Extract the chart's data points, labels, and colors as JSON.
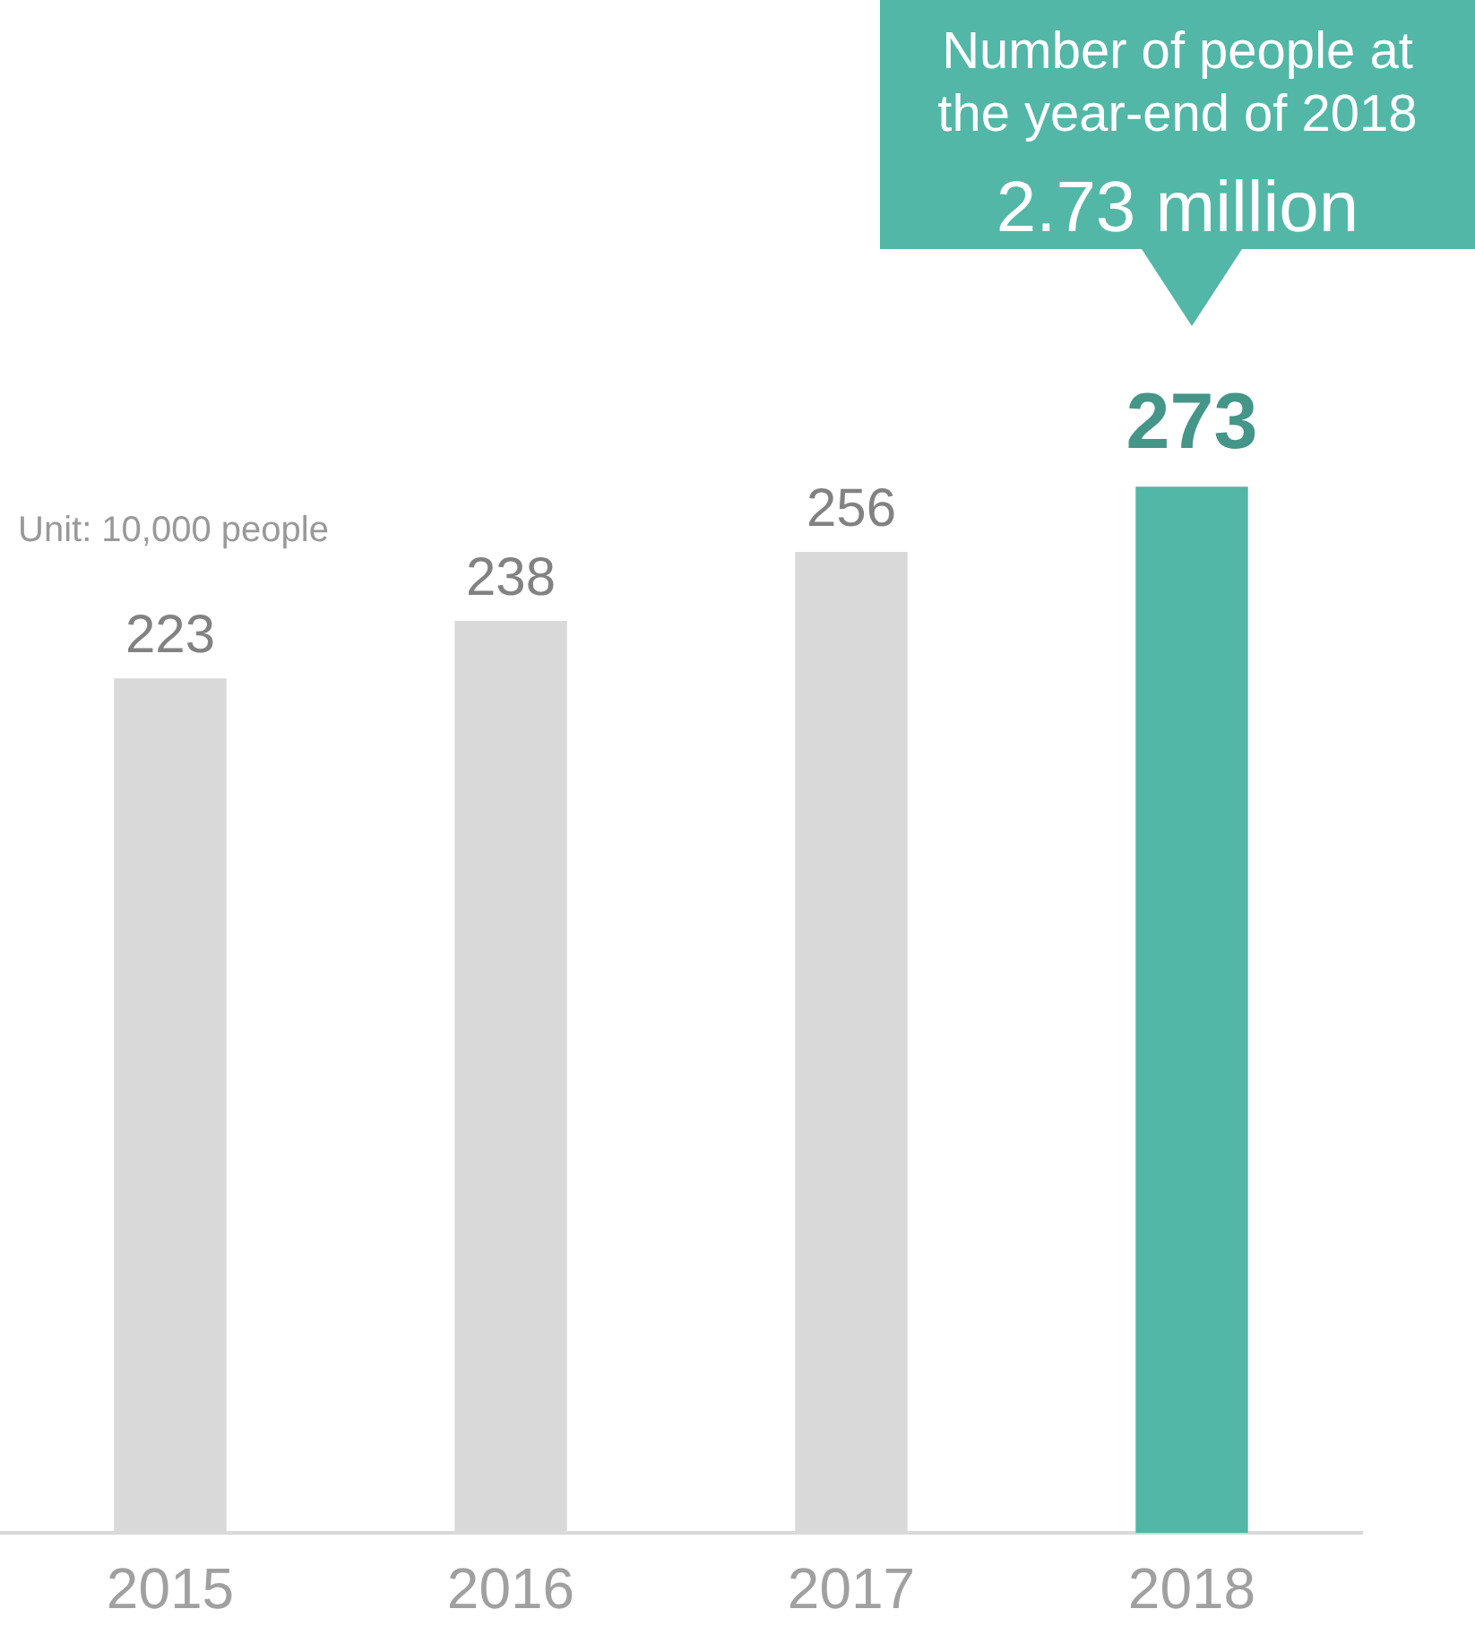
{
  "chart_data": {
    "type": "bar",
    "subtitle": "Unit: 10,000 people",
    "categories": [
      "2015",
      "2016",
      "2017",
      "2018"
    ],
    "values": [
      223,
      238,
      256,
      273
    ],
    "colors": [
      "#d9d9d9",
      "#d9d9d9",
      "#d9d9d9",
      "#52b7a6"
    ],
    "data_labels": true,
    "grid": false,
    "legend": false,
    "annotations": [
      "Number of people at the year-end of 2018",
      "2.73 million"
    ]
  }
}
